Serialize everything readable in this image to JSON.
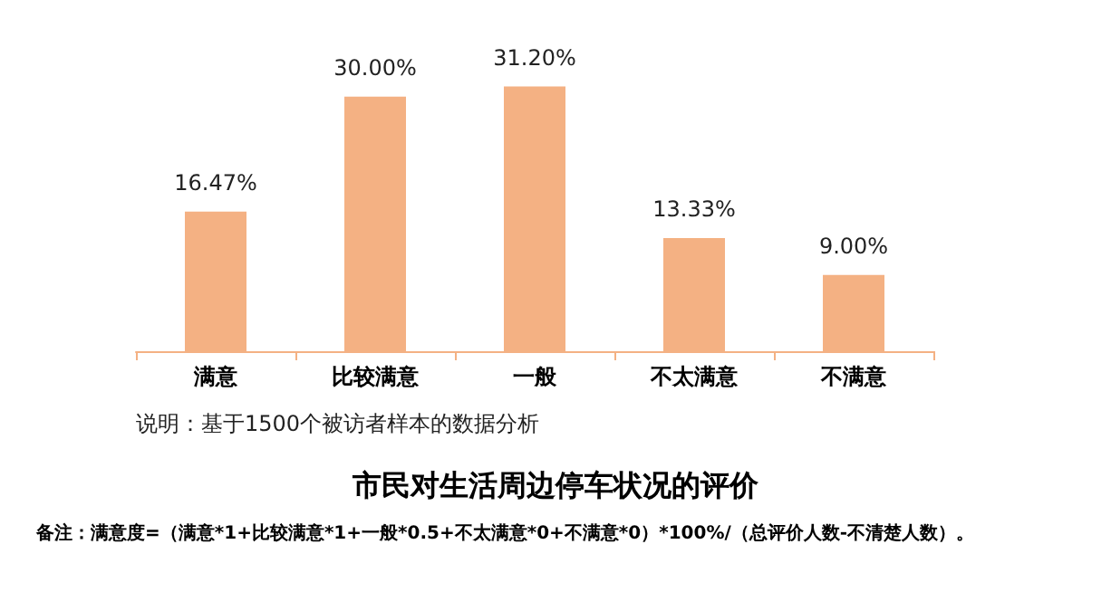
{
  "chart_data": {
    "type": "bar",
    "title": "市民对生活周边停车状况的评价",
    "categories": [
      "满意",
      "比较满意",
      "一般",
      "不太满意",
      "不满意"
    ],
    "values": [
      16.47,
      30.0,
      31.2,
      13.33,
      9.0
    ],
    "value_labels": [
      "16.47%",
      "30.00%",
      "31.20%",
      "13.33%",
      "9.00%"
    ],
    "color": "#f4b183",
    "annotations": [
      "说明：基于1500个被访者样本的数据分析",
      "备注：满意度=（满意*1+比较满意*1+一般*0.5+不太满意*0+不满意*0）*100%/（总评价人数-不清楚人数）。"
    ]
  }
}
